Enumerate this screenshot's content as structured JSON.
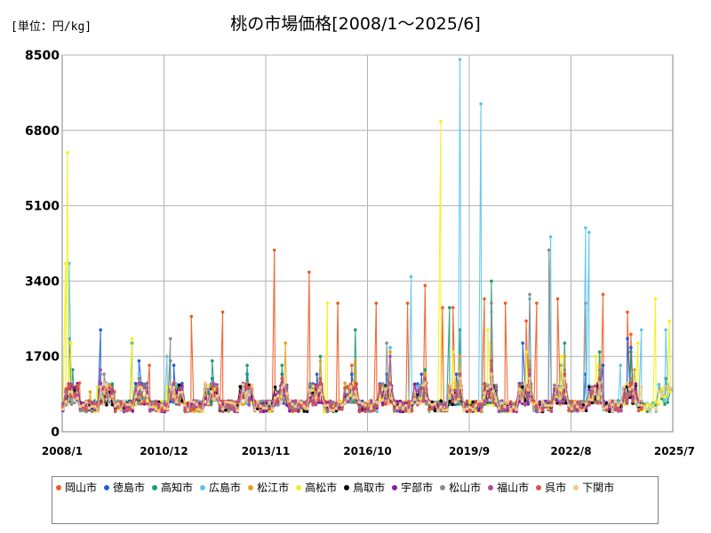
{
  "unit_label": "[単位：円/kg]",
  "chart_data": {
    "type": "line",
    "title": "桃の市場価格[2008/1～2025/6]",
    "ylim": [
      0,
      8500
    ],
    "y_ticks": [
      "0",
      "1700",
      "3400",
      "5100",
      "6800",
      "8500"
    ],
    "x_start": 2008.0,
    "x_end": 2025.5,
    "x_ticks": [
      {
        "label": "2008/1",
        "year": 2008.0
      },
      {
        "label": "2010/12",
        "year": 2010.917
      },
      {
        "label": "2013/11",
        "year": 2013.833
      },
      {
        "label": "2016/10",
        "year": 2016.75
      },
      {
        "label": "2019/9",
        "year": 2019.667
      },
      {
        "label": "2022/8",
        "year": 2022.583
      },
      {
        "label": "2025/7",
        "year": 2025.5
      }
    ],
    "grid": true,
    "legend_position": "bottom",
    "series": [
      {
        "name": "岡山市",
        "color": "#f15a22"
      },
      {
        "name": "徳島市",
        "color": "#1f5fd8"
      },
      {
        "name": "高知市",
        "color": "#1a9e6e"
      },
      {
        "name": "広島市",
        "color": "#5bc4ec"
      },
      {
        "name": "松江市",
        "color": "#e8a317"
      },
      {
        "name": "高松市",
        "color": "#f2f21a"
      },
      {
        "name": "鳥取市",
        "color": "#000000"
      },
      {
        "name": "宇部市",
        "color": "#8a1aa8"
      },
      {
        "name": "松山市",
        "color": "#8c8c8c"
      },
      {
        "name": "福山市",
        "color": "#b04aa6"
      },
      {
        "name": "呉市",
        "color": "#d9534f"
      },
      {
        "name": "下関市",
        "color": "#f0c987"
      }
    ],
    "peaks": [
      {
        "series": "岡山市",
        "points": [
          [
            2008.5,
            1100
          ],
          [
            2009.5,
            900
          ],
          [
            2010.5,
            1500
          ],
          [
            2011.3,
            900
          ],
          [
            2011.7,
            2600
          ],
          [
            2012.6,
            2700
          ],
          [
            2013.4,
            1000
          ],
          [
            2014.08,
            4100
          ],
          [
            2015.08,
            3600
          ],
          [
            2015.9,
            2900
          ],
          [
            2016.3,
            1500
          ],
          [
            2017.0,
            2900
          ],
          [
            2017.9,
            2900
          ],
          [
            2018.4,
            3300
          ],
          [
            2018.9,
            2800
          ],
          [
            2019.2,
            2800
          ],
          [
            2020.1,
            3000
          ],
          [
            2020.7,
            2900
          ],
          [
            2021.3,
            2500
          ],
          [
            2021.6,
            2900
          ],
          [
            2022.2,
            3000
          ],
          [
            2023.0,
            2900
          ],
          [
            2023.5,
            3100
          ],
          [
            2024.2,
            2700
          ],
          [
            2024.3,
            2200
          ]
        ]
      },
      {
        "series": "徳島市",
        "points": [
          [
            2008.2,
            2100
          ],
          [
            2009.1,
            2300
          ],
          [
            2010.2,
            1600
          ],
          [
            2011.2,
            1500
          ],
          [
            2012.3,
            1200
          ],
          [
            2013.3,
            1300
          ],
          [
            2014.3,
            1300
          ],
          [
            2015.3,
            1300
          ],
          [
            2016.3,
            1300
          ],
          [
            2017.3,
            1300
          ],
          [
            2018.3,
            1300
          ],
          [
            2019.3,
            1300
          ],
          [
            2020.3,
            1500
          ],
          [
            2021.2,
            2000
          ],
          [
            2022.3,
            1500
          ],
          [
            2023.0,
            1300
          ],
          [
            2023.5,
            1500
          ],
          [
            2024.2,
            2100
          ],
          [
            2024.3,
            1900
          ]
        ]
      },
      {
        "series": "高知市",
        "points": [
          [
            2008.3,
            1400
          ],
          [
            2009.1,
            1300
          ],
          [
            2010.0,
            2000
          ],
          [
            2011.1,
            1600
          ],
          [
            2012.3,
            1600
          ],
          [
            2013.3,
            1500
          ],
          [
            2014.3,
            1500
          ],
          [
            2015.4,
            1700
          ],
          [
            2016.4,
            2300
          ],
          [
            2017.4,
            1900
          ],
          [
            2018.4,
            1400
          ],
          [
            2019.1,
            2800
          ],
          [
            2019.4,
            2300
          ],
          [
            2020.3,
            3400
          ],
          [
            2021.4,
            1500
          ],
          [
            2022.4,
            2000
          ],
          [
            2023.4,
            1800
          ],
          [
            2024.3,
            1800
          ],
          [
            2025.3,
            1200
          ]
        ]
      },
      {
        "series": "広島市",
        "points": [
          [
            2008.2,
            3800
          ],
          [
            2009.1,
            1300
          ],
          [
            2010.2,
            1300
          ],
          [
            2011.0,
            1700
          ],
          [
            2012.3,
            1100
          ],
          [
            2013.3,
            1000
          ],
          [
            2014.3,
            1200
          ],
          [
            2015.4,
            1200
          ],
          [
            2016.4,
            1400
          ],
          [
            2017.4,
            1900
          ],
          [
            2018.0,
            3500
          ],
          [
            2018.4,
            1100
          ],
          [
            2019.4,
            8400
          ],
          [
            2020.0,
            7400
          ],
          [
            2020.3,
            2700
          ],
          [
            2021.4,
            3000
          ],
          [
            2022.0,
            4400
          ],
          [
            2023.0,
            4600
          ],
          [
            2023.1,
            4500
          ],
          [
            2024.0,
            1500
          ],
          [
            2024.6,
            2300
          ],
          [
            2025.3,
            2300
          ]
        ]
      },
      {
        "series": "松江市",
        "points": [
          [
            2008.2,
            1000
          ],
          [
            2008.8,
            900
          ],
          [
            2009.5,
            700
          ],
          [
            2010.2,
            1000
          ],
          [
            2011.2,
            1000
          ],
          [
            2012.3,
            900
          ],
          [
            2013.3,
            1000
          ],
          [
            2014.4,
            2000
          ],
          [
            2015.4,
            1600
          ],
          [
            2016.4,
            1600
          ],
          [
            2017.4,
            1800
          ],
          [
            2018.4,
            1300
          ],
          [
            2019.4,
            1700
          ],
          [
            2020.3,
            2000
          ],
          [
            2021.4,
            1600
          ],
          [
            2022.4,
            1700
          ],
          [
            2023.4,
            1500
          ],
          [
            2024.4,
            1400
          ]
        ]
      },
      {
        "series": "高松市",
        "points": [
          [
            2008.1,
            3800
          ],
          [
            2008.15,
            6300
          ],
          [
            2008.25,
            2000
          ],
          [
            2009.0,
            1000
          ],
          [
            2010.0,
            2100
          ],
          [
            2011.0,
            1000
          ],
          [
            2012.3,
            900
          ],
          [
            2013.3,
            1000
          ],
          [
            2014.3,
            1100
          ],
          [
            2015.6,
            2900
          ],
          [
            2016.4,
            1100
          ],
          [
            2017.4,
            1300
          ],
          [
            2018.85,
            7000
          ],
          [
            2019.2,
            1800
          ],
          [
            2020.2,
            2300
          ],
          [
            2021.3,
            1800
          ],
          [
            2022.3,
            1700
          ],
          [
            2023.3,
            1700
          ],
          [
            2024.5,
            2000
          ],
          [
            2025.0,
            3000
          ],
          [
            2025.4,
            2500
          ]
        ]
      },
      {
        "series": "鳥取市",
        "points": [
          [
            2008.2,
            800
          ],
          [
            2009.2,
            800
          ],
          [
            2010.2,
            1000
          ],
          [
            2011.2,
            1000
          ],
          [
            2012.3,
            900
          ],
          [
            2013.3,
            900
          ],
          [
            2014.3,
            1100
          ],
          [
            2015.4,
            900
          ],
          [
            2016.4,
            900
          ],
          [
            2017.4,
            900
          ],
          [
            2018.4,
            1000
          ],
          [
            2019.4,
            1000
          ],
          [
            2020.3,
            1200
          ],
          [
            2021.4,
            1100
          ],
          [
            2022.4,
            1100
          ],
          [
            2023.4,
            1100
          ],
          [
            2024.3,
            1000
          ]
        ]
      },
      {
        "series": "宇部市",
        "points": [
          [
            2008.2,
            900
          ],
          [
            2009.2,
            900
          ],
          [
            2010.2,
            1000
          ],
          [
            2011.2,
            1000
          ],
          [
            2012.3,
            900
          ],
          [
            2013.3,
            900
          ],
          [
            2014.3,
            1100
          ],
          [
            2015.4,
            1000
          ],
          [
            2016.4,
            900
          ],
          [
            2017.4,
            1000
          ],
          [
            2018.4,
            1100
          ],
          [
            2019.4,
            1100
          ],
          [
            2020.3,
            1300
          ],
          [
            2021.4,
            1200
          ],
          [
            2022.4,
            1200
          ],
          [
            2023.4,
            1100
          ],
          [
            2024.3,
            1000
          ]
        ]
      },
      {
        "series": "松山市",
        "points": [
          [
            2008.2,
            900
          ],
          [
            2009.2,
            1300
          ],
          [
            2010.2,
            1200
          ],
          [
            2011.1,
            2100
          ],
          [
            2012.3,
            1100
          ],
          [
            2013.3,
            1100
          ],
          [
            2014.3,
            1200
          ],
          [
            2015.4,
            1100
          ],
          [
            2016.4,
            1000
          ],
          [
            2017.3,
            2000
          ],
          [
            2018.4,
            1200
          ],
          [
            2019.4,
            1300
          ],
          [
            2020.3,
            2900
          ],
          [
            2021.4,
            3100
          ],
          [
            2021.95,
            4100
          ],
          [
            2022.4,
            1400
          ],
          [
            2023.4,
            1400
          ],
          [
            2024.3,
            1200
          ]
        ]
      },
      {
        "series": "福山市",
        "points": [
          [
            2008.2,
            900
          ],
          [
            2009.1,
            1400
          ],
          [
            2010.2,
            1100
          ],
          [
            2011.2,
            1100
          ],
          [
            2012.3,
            1000
          ],
          [
            2013.3,
            1000
          ],
          [
            2014.3,
            1200
          ],
          [
            2015.4,
            1100
          ],
          [
            2016.4,
            1000
          ],
          [
            2017.4,
            1700
          ],
          [
            2018.4,
            1200
          ],
          [
            2019.4,
            1300
          ],
          [
            2020.3,
            1400
          ],
          [
            2021.4,
            1300
          ],
          [
            2022.4,
            1300
          ],
          [
            2023.4,
            1200
          ],
          [
            2024.3,
            1100
          ]
        ]
      },
      {
        "series": "呉市",
        "points": [
          [
            2008.2,
            1000
          ],
          [
            2009.2,
            1000
          ],
          [
            2010.2,
            1000
          ],
          [
            2011.2,
            1100
          ],
          [
            2012.3,
            1000
          ],
          [
            2013.3,
            1000
          ],
          [
            2014.3,
            1200
          ],
          [
            2015.4,
            1200
          ],
          [
            2016.4,
            1100
          ],
          [
            2017.4,
            1100
          ],
          [
            2018.4,
            1200
          ],
          [
            2019.4,
            1300
          ],
          [
            2020.3,
            1600
          ],
          [
            2021.4,
            1400
          ],
          [
            2022.4,
            1300
          ],
          [
            2023.4,
            1200
          ],
          [
            2024.3,
            1100
          ]
        ]
      },
      {
        "series": "下関市",
        "points": [
          [
            2008.2,
            900
          ],
          [
            2009.2,
            900
          ],
          [
            2010.2,
            1000
          ],
          [
            2011.2,
            1000
          ],
          [
            2012.3,
            900
          ],
          [
            2013.3,
            900
          ],
          [
            2014.3,
            1000
          ],
          [
            2015.4,
            1000
          ],
          [
            2016.4,
            900
          ],
          [
            2017.4,
            1000
          ],
          [
            2018.4,
            1100
          ],
          [
            2019.4,
            1200
          ],
          [
            2020.3,
            1300
          ],
          [
            2021.4,
            1200
          ],
          [
            2022.4,
            1200
          ],
          [
            2023.4,
            1100
          ],
          [
            2024.6,
            1000
          ],
          [
            2025.4,
            1000
          ]
        ]
      }
    ]
  }
}
